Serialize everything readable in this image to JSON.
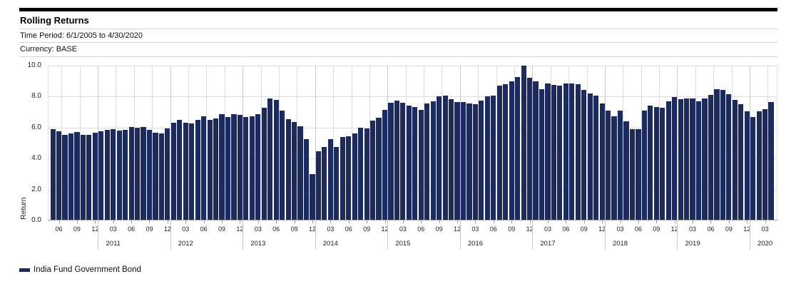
{
  "header": {
    "title": "Rolling Returns",
    "time_period": "Time Period: 6/1/2005 to 4/30/2020",
    "currency": "Currency: BASE"
  },
  "legend": {
    "label": "India Fund Government Bond",
    "swatch_color": "#1b2a60"
  },
  "colors": {
    "bar": "#1b2a60",
    "gridline": "#dcdcdc",
    "axis_baseline": "#a6a6a6",
    "header_bar": "#000000"
  },
  "chart_data": {
    "type": "bar",
    "title": "Rolling Returns",
    "ylabel": "Return",
    "xlabel": "",
    "ylim": [
      0,
      10
    ],
    "grid": true,
    "legend_position": "bottom-left",
    "ytick_values": [
      0,
      2,
      4,
      6,
      8,
      10
    ],
    "ytick_labels": [
      "0.0",
      "2.0",
      "4.0",
      "6.0",
      "8.0",
      "10.0"
    ],
    "xtick_month_labels": [
      "03",
      "06",
      "09",
      "12"
    ],
    "series": [
      {
        "name": "India Fund Government Bond",
        "color": "#1b2a60"
      }
    ],
    "months": [
      "05/2010",
      "06/2010",
      "07/2010",
      "08/2010",
      "09/2010",
      "10/2010",
      "11/2010",
      "12/2010",
      "01/2011",
      "02/2011",
      "03/2011",
      "04/2011",
      "05/2011",
      "06/2011",
      "07/2011",
      "08/2011",
      "09/2011",
      "10/2011",
      "11/2011",
      "12/2011",
      "01/2012",
      "02/2012",
      "03/2012",
      "04/2012",
      "05/2012",
      "06/2012",
      "07/2012",
      "08/2012",
      "09/2012",
      "10/2012",
      "11/2012",
      "12/2012",
      "01/2013",
      "02/2013",
      "03/2013",
      "04/2013",
      "05/2013",
      "06/2013",
      "07/2013",
      "08/2013",
      "09/2013",
      "10/2013",
      "11/2013",
      "12/2013",
      "01/2014",
      "02/2014",
      "03/2014",
      "04/2014",
      "05/2014",
      "06/2014",
      "07/2014",
      "08/2014",
      "09/2014",
      "10/2014",
      "11/2014",
      "12/2014",
      "01/2015",
      "02/2015",
      "03/2015",
      "04/2015",
      "05/2015",
      "06/2015",
      "07/2015",
      "08/2015",
      "09/2015",
      "10/2015",
      "11/2015",
      "12/2015",
      "01/2016",
      "02/2016",
      "03/2016",
      "04/2016",
      "05/2016",
      "06/2016",
      "07/2016",
      "08/2016",
      "09/2016",
      "10/2016",
      "11/2016",
      "12/2016",
      "01/2017",
      "02/2017",
      "03/2017",
      "04/2017",
      "05/2017",
      "06/2017",
      "07/2017",
      "08/2017",
      "09/2017",
      "10/2017",
      "11/2017",
      "12/2017",
      "01/2018",
      "02/2018",
      "03/2018",
      "04/2018",
      "05/2018",
      "06/2018",
      "07/2018",
      "08/2018",
      "09/2018",
      "10/2018",
      "11/2018",
      "12/2018",
      "01/2019",
      "02/2019",
      "03/2019",
      "04/2019",
      "05/2019",
      "06/2019",
      "07/2019",
      "08/2019",
      "09/2019",
      "10/2019",
      "11/2019",
      "12/2019",
      "01/2020",
      "02/2020",
      "03/2020",
      "04/2020"
    ],
    "values": [
      5.9,
      5.75,
      5.55,
      5.6,
      5.7,
      5.55,
      5.55,
      5.65,
      5.75,
      5.85,
      5.9,
      5.8,
      5.85,
      6.05,
      6.0,
      6.05,
      5.85,
      5.65,
      5.6,
      5.95,
      6.3,
      6.5,
      6.3,
      6.25,
      6.5,
      6.75,
      6.5,
      6.6,
      6.85,
      6.7,
      6.85,
      6.8,
      6.7,
      6.75,
      6.85,
      7.3,
      7.9,
      7.8,
      7.1,
      6.55,
      6.35,
      6.1,
      5.25,
      3.0,
      4.45,
      4.75,
      5.25,
      4.75,
      5.4,
      5.45,
      5.6,
      6.0,
      5.95,
      6.45,
      6.65,
      7.15,
      7.6,
      7.75,
      7.6,
      7.4,
      7.35,
      7.15,
      7.55,
      7.7,
      8.0,
      8.05,
      7.85,
      7.65,
      7.65,
      7.55,
      7.5,
      7.75,
      8.0,
      8.05,
      8.7,
      8.8,
      9.0,
      9.25,
      10.0,
      9.2,
      9.0,
      8.5,
      8.85,
      8.75,
      8.7,
      8.85,
      8.85,
      8.8,
      8.45,
      8.2,
      8.05,
      7.55,
      7.1,
      6.75,
      7.1,
      6.4,
      5.9,
      5.9,
      7.1,
      7.4,
      7.35,
      7.3,
      7.7,
      7.95,
      7.85,
      7.9,
      7.9,
      7.7,
      7.9,
      8.1,
      8.5,
      8.45,
      8.15,
      7.8,
      7.5,
      7.05,
      6.7,
      7.05,
      7.2,
      7.65
    ]
  }
}
